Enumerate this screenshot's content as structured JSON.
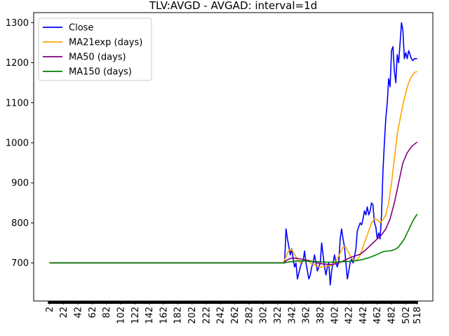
{
  "chart_data": {
    "type": "line",
    "title": "TLV:AVGD - AVGAD: interval=1d",
    "xlabel": "",
    "ylabel": "",
    "xlim": [
      -20,
      540
    ],
    "ylim": [
      605,
      1325
    ],
    "grid": false,
    "legend_position": "upper-left",
    "yticks": [
      700,
      800,
      900,
      1000,
      1100,
      1200,
      1300
    ],
    "xticks": [
      2,
      22,
      42,
      62,
      82,
      102,
      122,
      142,
      162,
      182,
      202,
      222,
      242,
      262,
      282,
      302,
      322,
      342,
      362,
      382,
      402,
      422,
      442,
      462,
      482,
      502,
      518
    ],
    "series": [
      {
        "name": "Close",
        "color": "#0000ff",
        "x": [
          2,
          330,
          332,
          334,
          336,
          338,
          340,
          342,
          344,
          346,
          348,
          350,
          352,
          354,
          356,
          358,
          360,
          362,
          364,
          366,
          368,
          370,
          372,
          374,
          376,
          378,
          380,
          382,
          384,
          386,
          388,
          390,
          392,
          394,
          396,
          398,
          400,
          402,
          404,
          406,
          408,
          410,
          412,
          414,
          416,
          418,
          420,
          422,
          424,
          426,
          428,
          430,
          432,
          434,
          436,
          438,
          440,
          442,
          444,
          446,
          448,
          450,
          452,
          454,
          456,
          458,
          460,
          462,
          464,
          466,
          468,
          470,
          472,
          474,
          476,
          478,
          480,
          482,
          484,
          486,
          488,
          490,
          492,
          494,
          496,
          498,
          500,
          502,
          504,
          506,
          508,
          510,
          512,
          514,
          516,
          518
        ],
        "y": [
          700,
          700,
          700,
          785,
          760,
          740,
          720,
          735,
          710,
          690,
          700,
          660,
          675,
          690,
          700,
          705,
          730,
          700,
          680,
          660,
          670,
          690,
          700,
          720,
          700,
          680,
          690,
          700,
          750,
          720,
          690,
          670,
          690,
          700,
          645,
          680,
          700,
          720,
          700,
          690,
          705,
          760,
          785,
          760,
          740,
          700,
          660,
          680,
          700,
          710,
          700,
          715,
          735,
          780,
          790,
          800,
          795,
          810,
          830,
          820,
          840,
          820,
          830,
          850,
          845,
          800,
          790,
          760,
          775,
          760,
          820,
          930,
          1000,
          1060,
          1100,
          1160,
          1140,
          1230,
          1240,
          1180,
          1150,
          1220,
          1200,
          1250,
          1300,
          1280,
          1210,
          1225,
          1210,
          1230,
          1220,
          1210,
          1205,
          1210,
          1210,
          1210
        ]
      },
      {
        "name": "MA21exp (days)",
        "color": "#ffa500",
        "x": [
          2,
          330,
          334,
          338,
          342,
          346,
          350,
          354,
          358,
          362,
          366,
          370,
          374,
          378,
          382,
          386,
          390,
          394,
          398,
          402,
          406,
          410,
          414,
          418,
          422,
          426,
          430,
          434,
          438,
          442,
          446,
          450,
          454,
          458,
          462,
          466,
          470,
          474,
          478,
          482,
          486,
          490,
          494,
          498,
          502,
          506,
          510,
          514,
          518
        ],
        "y": [
          700,
          700,
          715,
          732,
          733,
          722,
          708,
          700,
          705,
          708,
          703,
          698,
          695,
          692,
          690,
          690,
          692,
          693,
          694,
          700,
          710,
          725,
          740,
          740,
          725,
          712,
          705,
          708,
          720,
          740,
          760,
          780,
          800,
          810,
          808,
          800,
          808,
          820,
          850,
          900,
          960,
          1020,
          1060,
          1095,
          1125,
          1150,
          1165,
          1175,
          1178
        ]
      },
      {
        "name": "MA50 (days)",
        "color": "#800080",
        "x": [
          2,
          330,
          336,
          342,
          348,
          354,
          360,
          366,
          372,
          378,
          384,
          390,
          396,
          402,
          408,
          414,
          420,
          426,
          432,
          438,
          444,
          450,
          456,
          462,
          468,
          474,
          480,
          486,
          492,
          498,
          504,
          510,
          518
        ],
        "y": [
          700,
          700,
          708,
          712,
          712,
          710,
          708,
          706,
          703,
          700,
          698,
          697,
          696,
          697,
          700,
          705,
          710,
          715,
          718,
          722,
          730,
          740,
          750,
          760,
          770,
          785,
          810,
          850,
          900,
          950,
          975,
          990,
          1002
        ]
      },
      {
        "name": "MA150 (days)",
        "color": "#008000",
        "x": [
          2,
          330,
          340,
          350,
          360,
          370,
          380,
          390,
          400,
          410,
          420,
          430,
          440,
          450,
          460,
          470,
          476,
          480,
          484,
          488,
          492,
          496,
          500,
          504,
          508,
          512,
          518
        ],
        "y": [
          700,
          700,
          703,
          705,
          705,
          704,
          703,
          702,
          702,
          703,
          704,
          705,
          708,
          713,
          720,
          728,
          730,
          730,
          732,
          735,
          740,
          750,
          760,
          775,
          790,
          805,
          822
        ]
      }
    ]
  }
}
